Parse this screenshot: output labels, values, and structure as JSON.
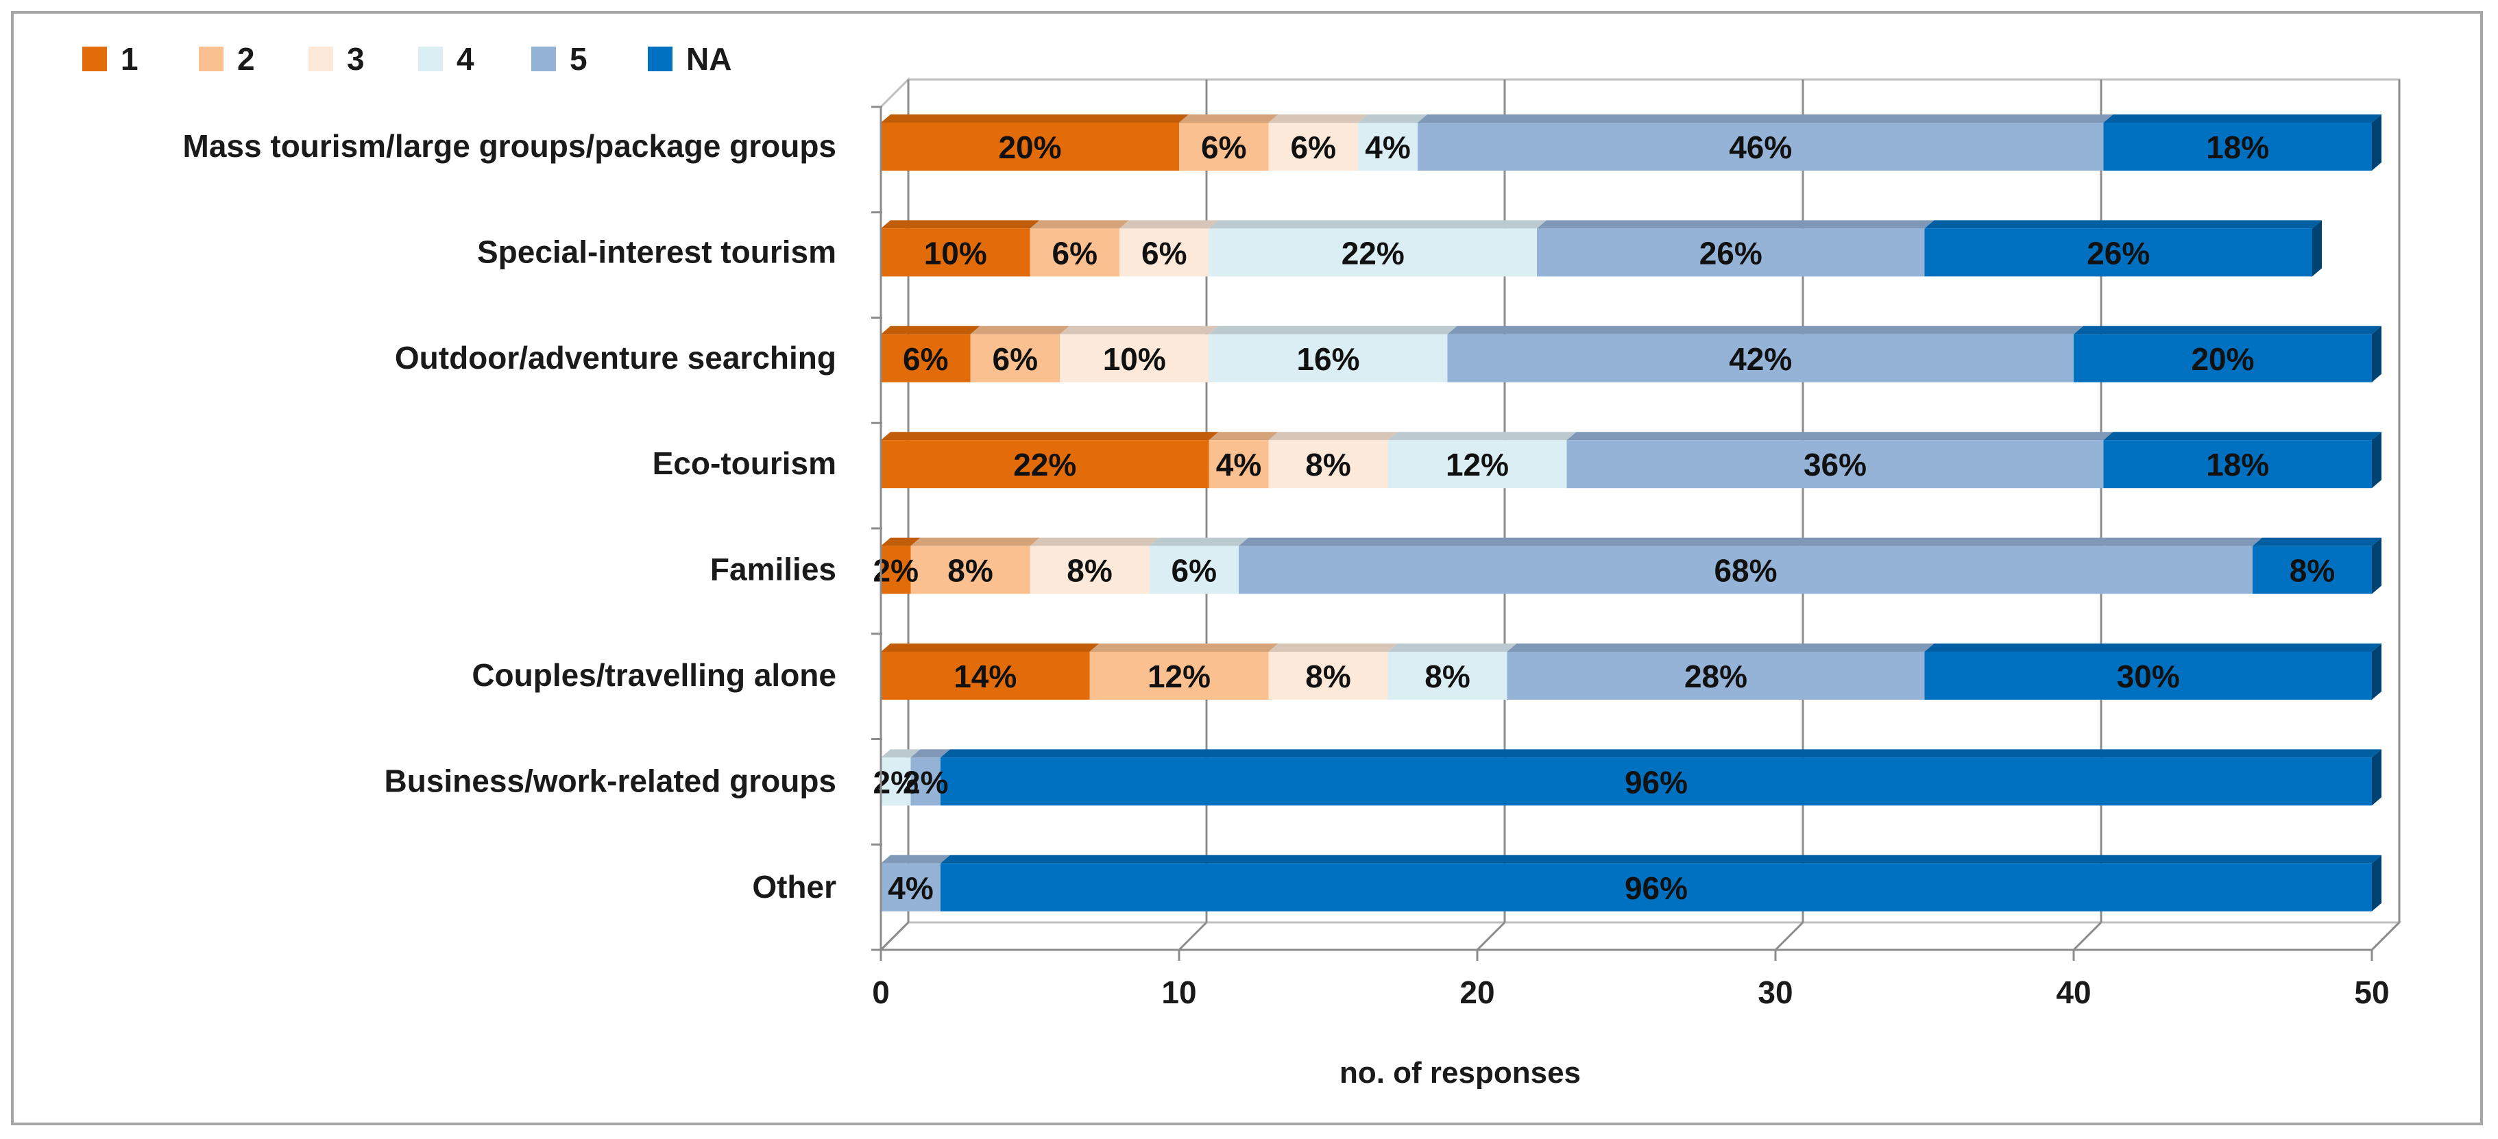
{
  "chart_data": {
    "type": "bar",
    "orientation": "horizontal",
    "stacked": true,
    "title": "",
    "xlabel": "no. of responses",
    "ylabel": "",
    "xlim": [
      0,
      50
    ],
    "xticks": [
      "0",
      "10",
      "20",
      "30",
      "40",
      "50"
    ],
    "legend_position": "top-left",
    "categories": [
      "Mass tourism/large groups/package  groups",
      "Special-interest tourism",
      "Outdoor/adventure searching",
      "Eco-tourism",
      "Families",
      "Couples/travelling alone",
      "Business/work-related groups",
      "Other"
    ],
    "series": [
      {
        "name": "1",
        "color": "#e36c0a",
        "values": [
          10,
          5,
          3,
          11,
          1,
          7,
          0,
          0
        ],
        "labels": [
          "20%",
          "10%",
          "6%",
          "22%",
          "2%",
          "14%",
          "",
          ""
        ]
      },
      {
        "name": "2",
        "color": "#fac090",
        "values": [
          3,
          3,
          3,
          2,
          4,
          6,
          0,
          0
        ],
        "labels": [
          "6%",
          "6%",
          "6%",
          "4%",
          "8%",
          "12%",
          "",
          ""
        ]
      },
      {
        "name": "3",
        "color": "#fde9d9",
        "values": [
          3,
          3,
          5,
          4,
          4,
          4,
          0,
          0
        ],
        "labels": [
          "6%",
          "6%",
          "10%",
          "8%",
          "8%",
          "8%",
          "",
          ""
        ]
      },
      {
        "name": "4",
        "color": "#dbeef4",
        "values": [
          2,
          11,
          8,
          6,
          3,
          4,
          1,
          0
        ],
        "labels": [
          "4%",
          "22%",
          "16%",
          "12%",
          "6%",
          "8%",
          "2%",
          ""
        ]
      },
      {
        "name": "5",
        "color": "#95b3d7",
        "values": [
          23,
          13,
          21,
          18,
          34,
          14,
          1,
          2
        ],
        "labels": [
          "46%",
          "26%",
          "42%",
          "36%",
          "68%",
          "28%",
          "2%",
          "4%"
        ]
      },
      {
        "name": "NA",
        "color": "#0070c0",
        "values": [
          9,
          13,
          10,
          9,
          4,
          15,
          48,
          48
        ],
        "labels": [
          "18%",
          "26%",
          "20%",
          "18%",
          "8%",
          "30%",
          "96%",
          "96%"
        ]
      }
    ]
  }
}
